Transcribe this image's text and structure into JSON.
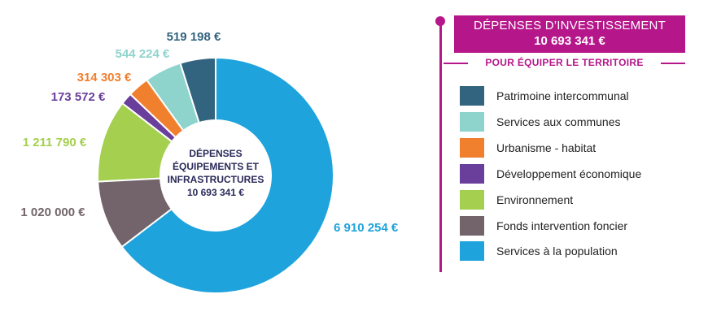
{
  "chart_data": {
    "type": "donut",
    "title": "DÉPENSES D'INVESTISSEMENT",
    "total": "10 693 341 €",
    "center_label": [
      "DÉPENSES",
      "ÉQUIPEMENTS ET",
      "INFRASTRUCTURES",
      "10 693 341 €"
    ],
    "slices": [
      {
        "name": "Patrimoine intercommunal",
        "value": 519198,
        "label": "519 198 €",
        "color": "#32647f"
      },
      {
        "name": "Services aux communes",
        "value": 544224,
        "label": "544 224 €",
        "color": "#8ed4cc"
      },
      {
        "name": "Urbanisme - habitat",
        "value": 314303,
        "label": "314 303 €",
        "color": "#f07f2e"
      },
      {
        "name": "Développement économique",
        "value": 173572,
        "label": "173 572 €",
        "color": "#6a3f9c"
      },
      {
        "name": "Environnement",
        "value": 1211790,
        "label": "1 211 790 €",
        "color": "#a4cf4f"
      },
      {
        "name": "Fonds intervention foncier",
        "value": 1020000,
        "label": "1 020 000 €",
        "color": "#72646a"
      },
      {
        "name": "Services à la population",
        "value": 6910254,
        "label": "6 910 254 €",
        "color": "#1ea3dc"
      }
    ]
  },
  "panel": {
    "title": "DÉPENSES D’INVESTISSEMENT",
    "total": "10 693 341 €",
    "subtitle": "POUR ÉQUIPER LE TERRITOIRE",
    "accent_color": "#b5168a"
  }
}
